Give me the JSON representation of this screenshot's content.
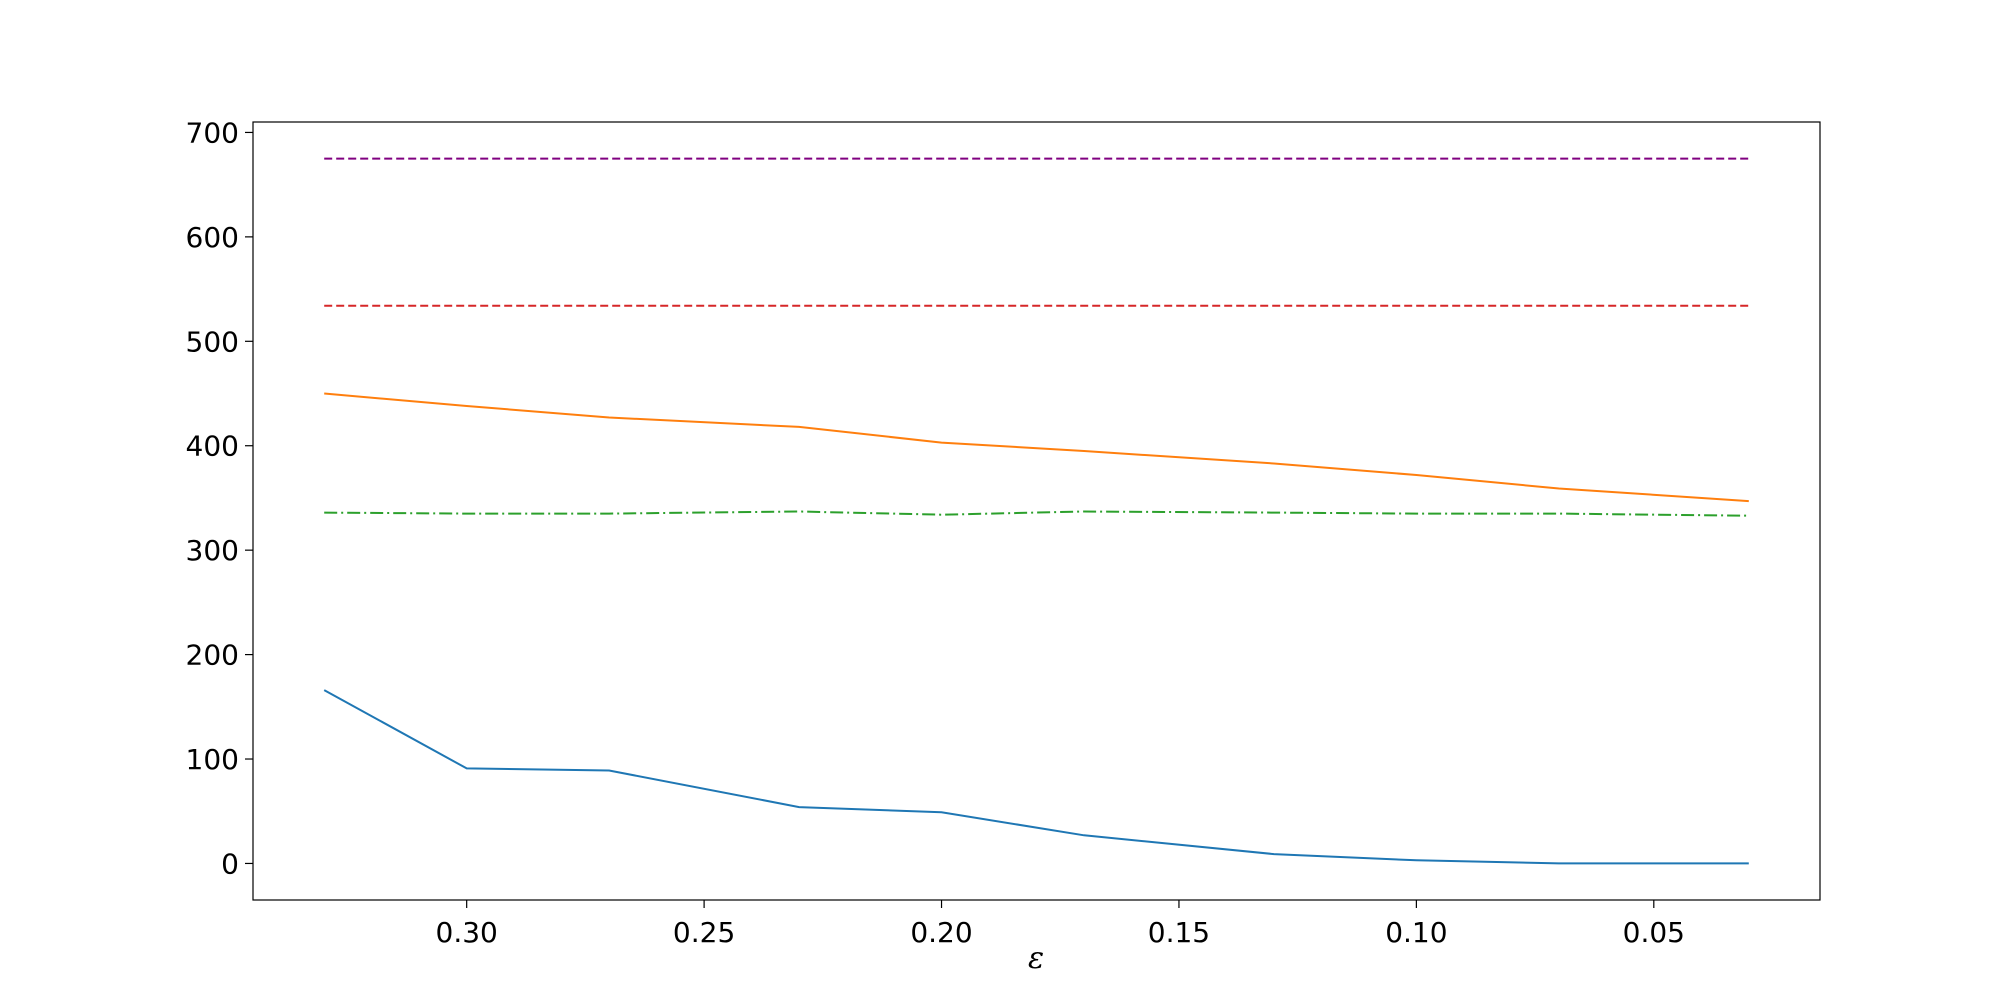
{
  "chart_data": {
    "type": "line",
    "title": "",
    "xlabel": "ε",
    "ylabel": "",
    "x_inverted": true,
    "xlim": [
      0.345,
      0.015
    ],
    "ylim": [
      -35,
      710
    ],
    "grid": false,
    "legend": "none",
    "x_ticks": [
      0.3,
      0.25,
      0.2,
      0.15,
      0.1,
      0.05
    ],
    "x_tick_labels": [
      "0.30",
      "0.25",
      "0.20",
      "0.15",
      "0.10",
      "0.05"
    ],
    "y_ticks": [
      0,
      100,
      200,
      300,
      400,
      500,
      600,
      700
    ],
    "y_tick_labels": [
      "0",
      "100",
      "200",
      "300",
      "400",
      "500",
      "600",
      "700"
    ],
    "x": [
      0.33,
      0.3,
      0.27,
      0.23,
      0.2,
      0.17,
      0.13,
      0.1,
      0.07,
      0.03
    ],
    "series": [
      {
        "color": "#1f77b4",
        "style": "solid",
        "values": [
          166,
          91,
          89,
          54,
          49,
          27,
          9,
          3,
          0,
          0
        ]
      },
      {
        "color": "#ff7f0e",
        "style": "solid",
        "values": [
          450,
          438,
          427,
          418,
          403,
          395,
          383,
          372,
          359,
          347
        ]
      },
      {
        "color": "#2ca02c",
        "style": "dashdot",
        "values": [
          336,
          335,
          335,
          337,
          334,
          337,
          336,
          335,
          335,
          333
        ]
      },
      {
        "color": "#d62728",
        "style": "dashed",
        "values": [
          534,
          534,
          534,
          534,
          534,
          534,
          534,
          534,
          534,
          534
        ]
      },
      {
        "color": "#800080",
        "style": "dashed",
        "values": [
          675,
          675,
          675,
          675,
          675,
          675,
          675,
          675,
          675,
          675
        ]
      }
    ]
  }
}
